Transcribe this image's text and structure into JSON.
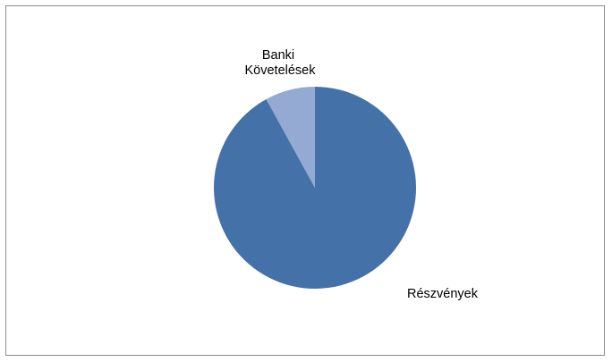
{
  "chart_data": {
    "type": "pie",
    "title": "",
    "slices": [
      {
        "label": "Részvények",
        "value": 92,
        "color": "#4472a8"
      },
      {
        "label": "Banki Követelések",
        "value": 8,
        "color": "#94aad3"
      }
    ],
    "legend": "none",
    "data_labels": "category-name"
  }
}
